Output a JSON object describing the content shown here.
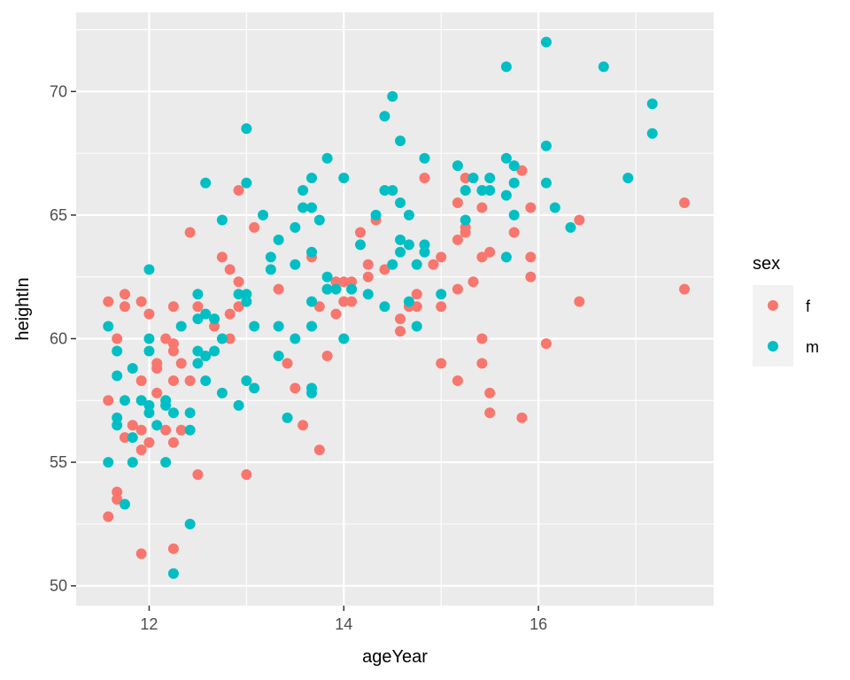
{
  "chart_data": {
    "type": "scatter",
    "xlabel": "ageYear",
    "ylabel": "heightIn",
    "xlim": [
      11.25,
      17.8
    ],
    "ylim": [
      49.2,
      73.2
    ],
    "x_ticks": [
      12,
      14,
      16
    ],
    "x_tick_labels": [
      "12",
      "14",
      "16"
    ],
    "y_ticks": [
      50,
      55,
      60,
      65,
      70
    ],
    "y_tick_labels": [
      "50",
      "55",
      "60",
      "65",
      "70"
    ],
    "grid": true,
    "legend": {
      "title": "sex",
      "position": "right"
    },
    "series": [
      {
        "name": "f",
        "color": "#F8766D",
        "points": [
          [
            11.58,
            61.5
          ],
          [
            11.58,
            57.5
          ],
          [
            11.58,
            52.8
          ],
          [
            11.67,
            60.0
          ],
          [
            11.67,
            53.8
          ],
          [
            11.67,
            53.5
          ],
          [
            11.75,
            61.8
          ],
          [
            11.75,
            61.3
          ],
          [
            11.75,
            56.0
          ],
          [
            11.83,
            56.5
          ],
          [
            11.92,
            61.5
          ],
          [
            11.92,
            58.3
          ],
          [
            11.92,
            56.3
          ],
          [
            11.92,
            55.5
          ],
          [
            11.92,
            51.3
          ],
          [
            12.0,
            61.0
          ],
          [
            12.0,
            55.8
          ],
          [
            12.08,
            59.0
          ],
          [
            12.08,
            58.8
          ],
          [
            12.08,
            57.8
          ],
          [
            12.17,
            60.0
          ],
          [
            12.17,
            56.3
          ],
          [
            12.25,
            61.3
          ],
          [
            12.25,
            59.8
          ],
          [
            12.25,
            59.5
          ],
          [
            12.25,
            58.3
          ],
          [
            12.25,
            55.8
          ],
          [
            12.25,
            51.5
          ],
          [
            12.33,
            59.0
          ],
          [
            12.33,
            56.3
          ],
          [
            12.42,
            64.3
          ],
          [
            12.42,
            58.3
          ],
          [
            12.5,
            61.3
          ],
          [
            12.5,
            54.5
          ],
          [
            12.67,
            60.5
          ],
          [
            12.75,
            63.3
          ],
          [
            12.83,
            62.8
          ],
          [
            12.83,
            61.0
          ],
          [
            12.83,
            60.0
          ],
          [
            12.92,
            66.0
          ],
          [
            12.92,
            62.3
          ],
          [
            12.92,
            61.3
          ],
          [
            13.0,
            54.5
          ],
          [
            13.08,
            64.5
          ],
          [
            13.33,
            62.0
          ],
          [
            13.42,
            59.0
          ],
          [
            13.5,
            58.0
          ],
          [
            13.58,
            56.5
          ],
          [
            13.67,
            63.3
          ],
          [
            13.75,
            61.3
          ],
          [
            13.75,
            55.5
          ],
          [
            13.83,
            62.0
          ],
          [
            13.83,
            59.3
          ],
          [
            13.92,
            62.3
          ],
          [
            13.92,
            61.0
          ],
          [
            14.0,
            62.3
          ],
          [
            14.0,
            61.5
          ],
          [
            14.08,
            62.3
          ],
          [
            14.08,
            61.5
          ],
          [
            14.17,
            64.3
          ],
          [
            14.25,
            63.0
          ],
          [
            14.25,
            62.5
          ],
          [
            14.33,
            64.8
          ],
          [
            14.42,
            62.8
          ],
          [
            14.58,
            60.8
          ],
          [
            14.58,
            60.3
          ],
          [
            14.67,
            61.3
          ],
          [
            14.75,
            61.8
          ],
          [
            14.75,
            61.3
          ],
          [
            14.83,
            66.5
          ],
          [
            14.92,
            63.0
          ],
          [
            15.0,
            63.3
          ],
          [
            15.0,
            61.3
          ],
          [
            15.0,
            59.0
          ],
          [
            15.17,
            65.5
          ],
          [
            15.17,
            64.0
          ],
          [
            15.17,
            62.0
          ],
          [
            15.17,
            58.3
          ],
          [
            15.25,
            66.5
          ],
          [
            15.25,
            64.5
          ],
          [
            15.25,
            64.3
          ],
          [
            15.33,
            62.3
          ],
          [
            15.42,
            65.3
          ],
          [
            15.42,
            63.3
          ],
          [
            15.42,
            60.0
          ],
          [
            15.42,
            59.0
          ],
          [
            15.5,
            63.5
          ],
          [
            15.5,
            57.8
          ],
          [
            15.5,
            57.0
          ],
          [
            15.75,
            64.3
          ],
          [
            15.83,
            66.8
          ],
          [
            15.83,
            56.8
          ],
          [
            15.92,
            65.3
          ],
          [
            15.92,
            63.3
          ],
          [
            15.92,
            62.5
          ],
          [
            16.08,
            59.8
          ],
          [
            16.42,
            64.8
          ],
          [
            16.42,
            61.5
          ],
          [
            17.5,
            65.5
          ],
          [
            17.5,
            62.0
          ]
        ]
      },
      {
        "name": "m",
        "color": "#00BFC4",
        "points": [
          [
            11.58,
            60.5
          ],
          [
            11.58,
            55.0
          ],
          [
            11.67,
            59.5
          ],
          [
            11.67,
            58.5
          ],
          [
            11.67,
            56.8
          ],
          [
            11.67,
            56.5
          ],
          [
            11.75,
            57.5
          ],
          [
            11.75,
            53.3
          ],
          [
            11.83,
            58.8
          ],
          [
            11.83,
            56.0
          ],
          [
            11.83,
            55.0
          ],
          [
            11.92,
            57.5
          ],
          [
            12.0,
            62.8
          ],
          [
            12.0,
            60.0
          ],
          [
            12.0,
            59.5
          ],
          [
            12.0,
            57.3
          ],
          [
            12.0,
            57.0
          ],
          [
            12.08,
            56.5
          ],
          [
            12.17,
            57.5
          ],
          [
            12.17,
            57.3
          ],
          [
            12.17,
            55.0
          ],
          [
            12.25,
            57.0
          ],
          [
            12.25,
            50.5
          ],
          [
            12.33,
            60.5
          ],
          [
            12.42,
            57.0
          ],
          [
            12.42,
            56.3
          ],
          [
            12.42,
            52.5
          ],
          [
            12.5,
            61.8
          ],
          [
            12.5,
            60.8
          ],
          [
            12.5,
            59.5
          ],
          [
            12.5,
            59.0
          ],
          [
            12.58,
            66.3
          ],
          [
            12.58,
            61.0
          ],
          [
            12.58,
            59.3
          ],
          [
            12.58,
            58.3
          ],
          [
            12.67,
            60.8
          ],
          [
            12.67,
            59.5
          ],
          [
            12.75,
            64.8
          ],
          [
            12.75,
            60.0
          ],
          [
            12.75,
            57.8
          ],
          [
            12.92,
            61.8
          ],
          [
            12.92,
            57.3
          ],
          [
            13.0,
            68.5
          ],
          [
            13.0,
            66.3
          ],
          [
            13.0,
            61.8
          ],
          [
            13.0,
            61.5
          ],
          [
            13.0,
            58.3
          ],
          [
            13.08,
            60.5
          ],
          [
            13.08,
            58.0
          ],
          [
            13.17,
            65.0
          ],
          [
            13.25,
            63.3
          ],
          [
            13.25,
            62.8
          ],
          [
            13.33,
            64.0
          ],
          [
            13.33,
            60.5
          ],
          [
            13.33,
            59.3
          ],
          [
            13.42,
            56.8
          ],
          [
            13.5,
            64.5
          ],
          [
            13.5,
            63.0
          ],
          [
            13.5,
            60.0
          ],
          [
            13.58,
            66.0
          ],
          [
            13.58,
            65.3
          ],
          [
            13.67,
            66.5
          ],
          [
            13.67,
            65.3
          ],
          [
            13.67,
            63.5
          ],
          [
            13.67,
            61.5
          ],
          [
            13.67,
            60.5
          ],
          [
            13.67,
            58.0
          ],
          [
            13.67,
            57.8
          ],
          [
            13.75,
            64.8
          ],
          [
            13.83,
            67.3
          ],
          [
            13.83,
            62.5
          ],
          [
            13.83,
            62.0
          ],
          [
            13.92,
            62.0
          ],
          [
            14.0,
            66.5
          ],
          [
            14.0,
            60.0
          ],
          [
            14.08,
            62.0
          ],
          [
            14.17,
            63.8
          ],
          [
            14.25,
            61.8
          ],
          [
            14.33,
            65.0
          ],
          [
            14.42,
            69.0
          ],
          [
            14.42,
            66.0
          ],
          [
            14.42,
            61.3
          ],
          [
            14.5,
            69.8
          ],
          [
            14.5,
            66.0
          ],
          [
            14.5,
            63.0
          ],
          [
            14.58,
            68.0
          ],
          [
            14.58,
            65.5
          ],
          [
            14.58,
            64.0
          ],
          [
            14.58,
            63.5
          ],
          [
            14.67,
            65.0
          ],
          [
            14.67,
            63.8
          ],
          [
            14.67,
            61.5
          ],
          [
            14.75,
            63.0
          ],
          [
            14.75,
            60.5
          ],
          [
            14.83,
            67.3
          ],
          [
            14.83,
            63.8
          ],
          [
            14.83,
            63.5
          ],
          [
            15.0,
            61.8
          ],
          [
            15.17,
            67.0
          ],
          [
            15.25,
            66.0
          ],
          [
            15.25,
            64.8
          ],
          [
            15.33,
            66.5
          ],
          [
            15.42,
            66.0
          ],
          [
            15.5,
            66.5
          ],
          [
            15.5,
            66.0
          ],
          [
            15.67,
            71.0
          ],
          [
            15.67,
            67.3
          ],
          [
            15.67,
            65.8
          ],
          [
            15.67,
            63.3
          ],
          [
            15.75,
            67.0
          ],
          [
            15.75,
            66.3
          ],
          [
            15.75,
            65.0
          ],
          [
            16.08,
            72.0
          ],
          [
            16.08,
            67.8
          ],
          [
            16.08,
            66.3
          ],
          [
            16.17,
            65.3
          ],
          [
            16.33,
            64.5
          ],
          [
            16.67,
            71.0
          ],
          [
            16.92,
            66.5
          ],
          [
            17.17,
            69.5
          ],
          [
            17.17,
            68.3
          ]
        ]
      }
    ]
  }
}
